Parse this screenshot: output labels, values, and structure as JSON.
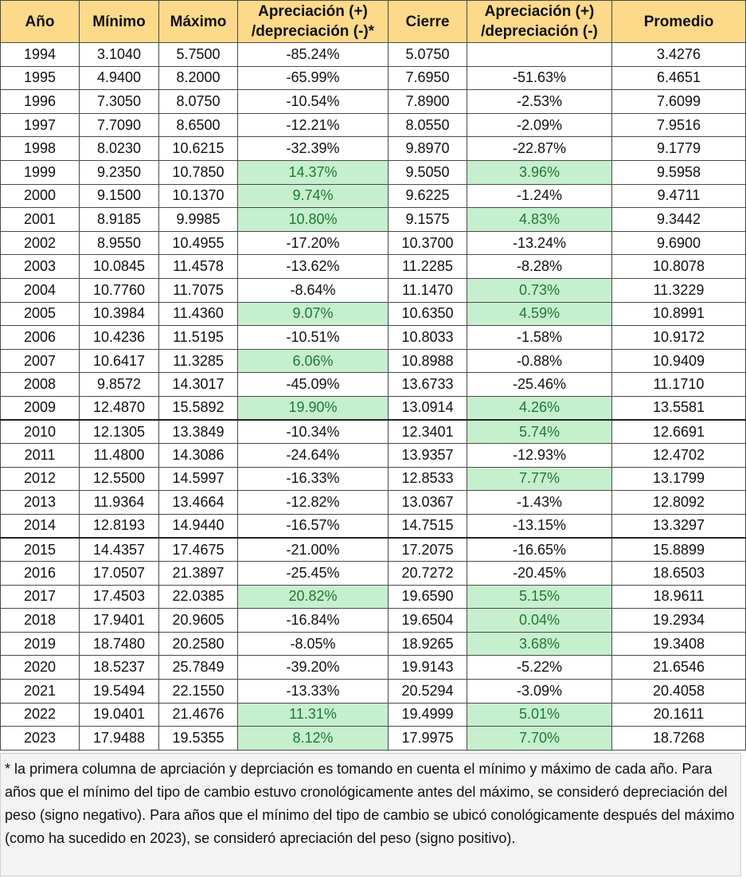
{
  "headers": [
    "Año",
    "Mínimo",
    "Máximo",
    "Apreciación (+) /depreciación (-)*",
    "Cierre",
    "Apreciación (+) /depreciación (-)",
    "Promedio"
  ],
  "rows": [
    {
      "year": "1994",
      "min": "3.1040",
      "max": "5.7500",
      "ap1": "-85.24%",
      "close": "5.0750",
      "ap2": "",
      "avg": "3.4276"
    },
    {
      "year": "1995",
      "min": "4.9400",
      "max": "8.2000",
      "ap1": "-65.99%",
      "close": "7.6950",
      "ap2": "-51.63%",
      "avg": "6.4651"
    },
    {
      "year": "1996",
      "min": "7.3050",
      "max": "8.0750",
      "ap1": "-10.54%",
      "close": "7.8900",
      "ap2": "-2.53%",
      "avg": "7.6099"
    },
    {
      "year": "1997",
      "min": "7.7090",
      "max": "8.6500",
      "ap1": "-12.21%",
      "close": "8.0550",
      "ap2": "-2.09%",
      "avg": "7.9516"
    },
    {
      "year": "1998",
      "min": "8.0230",
      "max": "10.6215",
      "ap1": "-32.39%",
      "close": "9.8970",
      "ap2": "-22.87%",
      "avg": "9.1779"
    },
    {
      "year": "1999",
      "min": "9.2350",
      "max": "10.7850",
      "ap1": "14.37%",
      "close": "9.5050",
      "ap2": "3.96%",
      "avg": "9.5958"
    },
    {
      "year": "2000",
      "min": "9.1500",
      "max": "10.1370",
      "ap1": "9.74%",
      "close": "9.6225",
      "ap2": "-1.24%",
      "avg": "9.4711"
    },
    {
      "year": "2001",
      "min": "8.9185",
      "max": "9.9985",
      "ap1": "10.80%",
      "close": "9.1575",
      "ap2": "4.83%",
      "avg": "9.3442"
    },
    {
      "year": "2002",
      "min": "8.9550",
      "max": "10.4955",
      "ap1": "-17.20%",
      "close": "10.3700",
      "ap2": "-13.24%",
      "avg": "9.6900"
    },
    {
      "year": "2003",
      "min": "10.0845",
      "max": "11.4578",
      "ap1": "-13.62%",
      "close": "11.2285",
      "ap2": "-8.28%",
      "avg": "10.8078"
    },
    {
      "year": "2004",
      "min": "10.7760",
      "max": "11.7075",
      "ap1": "-8.64%",
      "close": "11.1470",
      "ap2": "0.73%",
      "avg": "11.3229"
    },
    {
      "year": "2005",
      "min": "10.3984",
      "max": "11.4360",
      "ap1": "9.07%",
      "close": "10.6350",
      "ap2": "4.59%",
      "avg": "10.8991"
    },
    {
      "year": "2006",
      "min": "10.4236",
      "max": "11.5195",
      "ap1": "-10.51%",
      "close": "10.8033",
      "ap2": "-1.58%",
      "avg": "10.9172"
    },
    {
      "year": "2007",
      "min": "10.6417",
      "max": "11.3285",
      "ap1": "6.06%",
      "close": "10.8988",
      "ap2": "-0.88%",
      "avg": "10.9409"
    },
    {
      "year": "2008",
      "min": "9.8572",
      "max": "14.3017",
      "ap1": "-45.09%",
      "close": "13.6733",
      "ap2": "-25.46%",
      "avg": "11.1710"
    },
    {
      "year": "2009",
      "min": "12.4870",
      "max": "15.5892",
      "ap1": "19.90%",
      "close": "13.0914",
      "ap2": "4.26%",
      "avg": "13.5581"
    },
    {
      "year": "2010",
      "min": "12.1305",
      "max": "13.3849",
      "ap1": "-10.34%",
      "close": "12.3401",
      "ap2": "5.74%",
      "avg": "12.6691"
    },
    {
      "year": "2011",
      "min": "11.4800",
      "max": "14.3086",
      "ap1": "-24.64%",
      "close": "13.9357",
      "ap2": "-12.93%",
      "avg": "12.4702"
    },
    {
      "year": "2012",
      "min": "12.5500",
      "max": "14.5997",
      "ap1": "-16.33%",
      "close": "12.8533",
      "ap2": "7.77%",
      "avg": "13.1799"
    },
    {
      "year": "2013",
      "min": "11.9364",
      "max": "13.4664",
      "ap1": "-12.82%",
      "close": "13.0367",
      "ap2": "-1.43%",
      "avg": "12.8092"
    },
    {
      "year": "2014",
      "min": "12.8193",
      "max": "14.9440",
      "ap1": "-16.57%",
      "close": "14.7515",
      "ap2": "-13.15%",
      "avg": "13.3297"
    },
    {
      "year": "2015",
      "min": "14.4357",
      "max": "17.4675",
      "ap1": "-21.00%",
      "close": "17.2075",
      "ap2": "-16.65%",
      "avg": "15.8899"
    },
    {
      "year": "2016",
      "min": "17.0507",
      "max": "21.3897",
      "ap1": "-25.45%",
      "close": "20.7272",
      "ap2": "-20.45%",
      "avg": "18.6503"
    },
    {
      "year": "2017",
      "min": "17.4503",
      "max": "22.0385",
      "ap1": "20.82%",
      "close": "19.6590",
      "ap2": "5.15%",
      "avg": "18.9611"
    },
    {
      "year": "2018",
      "min": "17.9401",
      "max": "20.9605",
      "ap1": "-16.84%",
      "close": "19.6504",
      "ap2": "0.04%",
      "avg": "19.2934"
    },
    {
      "year": "2019",
      "min": "18.7480",
      "max": "20.2580",
      "ap1": "-8.05%",
      "close": "18.9265",
      "ap2": "3.68%",
      "avg": "19.3408"
    },
    {
      "year": "2020",
      "min": "18.5237",
      "max": "25.7849",
      "ap1": "-39.20%",
      "close": "19.9143",
      "ap2": "-5.22%",
      "avg": "21.6546"
    },
    {
      "year": "2021",
      "min": "19.5494",
      "max": "22.1550",
      "ap1": "-13.33%",
      "close": "20.5294",
      "ap2": "-3.09%",
      "avg": "20.4058"
    },
    {
      "year": "2022",
      "min": "19.0401",
      "max": "21.4676",
      "ap1": "11.31%",
      "close": "19.4999",
      "ap2": "5.01%",
      "avg": "20.1611"
    },
    {
      "year": "2023",
      "min": "17.9488",
      "max": "19.5355",
      "ap1": "8.12%",
      "close": "17.9975",
      "ap2": "7.70%",
      "avg": "18.7268"
    }
  ],
  "note": "* la primera columna de aprciación y deprciación es tomando en cuenta el mínimo y máximo de cada año. Para años que el mínimo del tipo de cambio estuvo cronológicamente antes del máximo, se consideró depreciación del peso (signo negativo). Para años que el mínimo del tipo de cambio se ubicó conológicamente después del máximo (como ha sucedido en 2023), se consideró apreciación del peso (signo positivo).",
  "colors": {
    "header_bg": "#fdd98a",
    "positive_bg": "#c6efce",
    "positive_text": "#1f7a32"
  }
}
